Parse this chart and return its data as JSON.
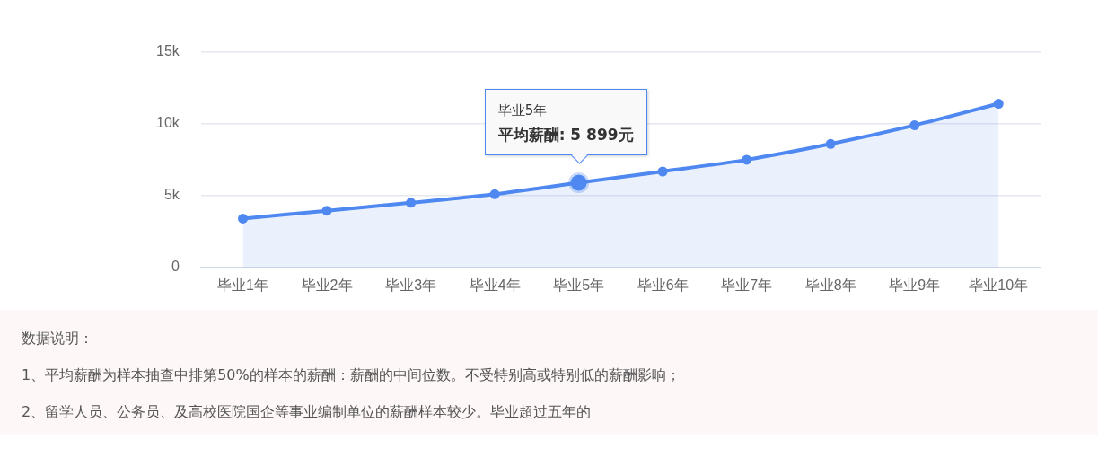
{
  "chart_data": {
    "type": "area",
    "categories": [
      "毕业1年",
      "毕业2年",
      "毕业3年",
      "毕业4年",
      "毕业5年",
      "毕业6年",
      "毕业7年",
      "毕业8年",
      "毕业9年",
      "毕业10年"
    ],
    "series": [
      {
        "color": "#4f88f0",
        "values": [
          3400,
          3950,
          4500,
          5100,
          5899,
          6680,
          7500,
          8600,
          9900,
          11400
        ],
        "value_labels": [
          null,
          null,
          null,
          null,
          "平均薪酬: 5 899元",
          null,
          null,
          null,
          null,
          null
        ]
      }
    ],
    "ylim": [
      0,
      15000
    ],
    "yticks": [
      {
        "value": 0,
        "label": "0"
      },
      {
        "value": 5000,
        "label": "5k"
      },
      {
        "value": 10000,
        "label": "10k"
      },
      {
        "value": 15000,
        "label": "15k"
      }
    ],
    "grid": "y",
    "legend": false,
    "marker": "circle",
    "annotations": [
      "毕业5年",
      "数据说明：",
      "1、平均薪酬为样本抽查中排第50%的样本的薪酬：薪酬的中间位数。不受特别高或特别低的薪酬影响；",
      "2、留学人员、公务员、及高校医院国企等事业编制单位的薪酬样本较少。毕业超过五年的"
    ]
  }
}
